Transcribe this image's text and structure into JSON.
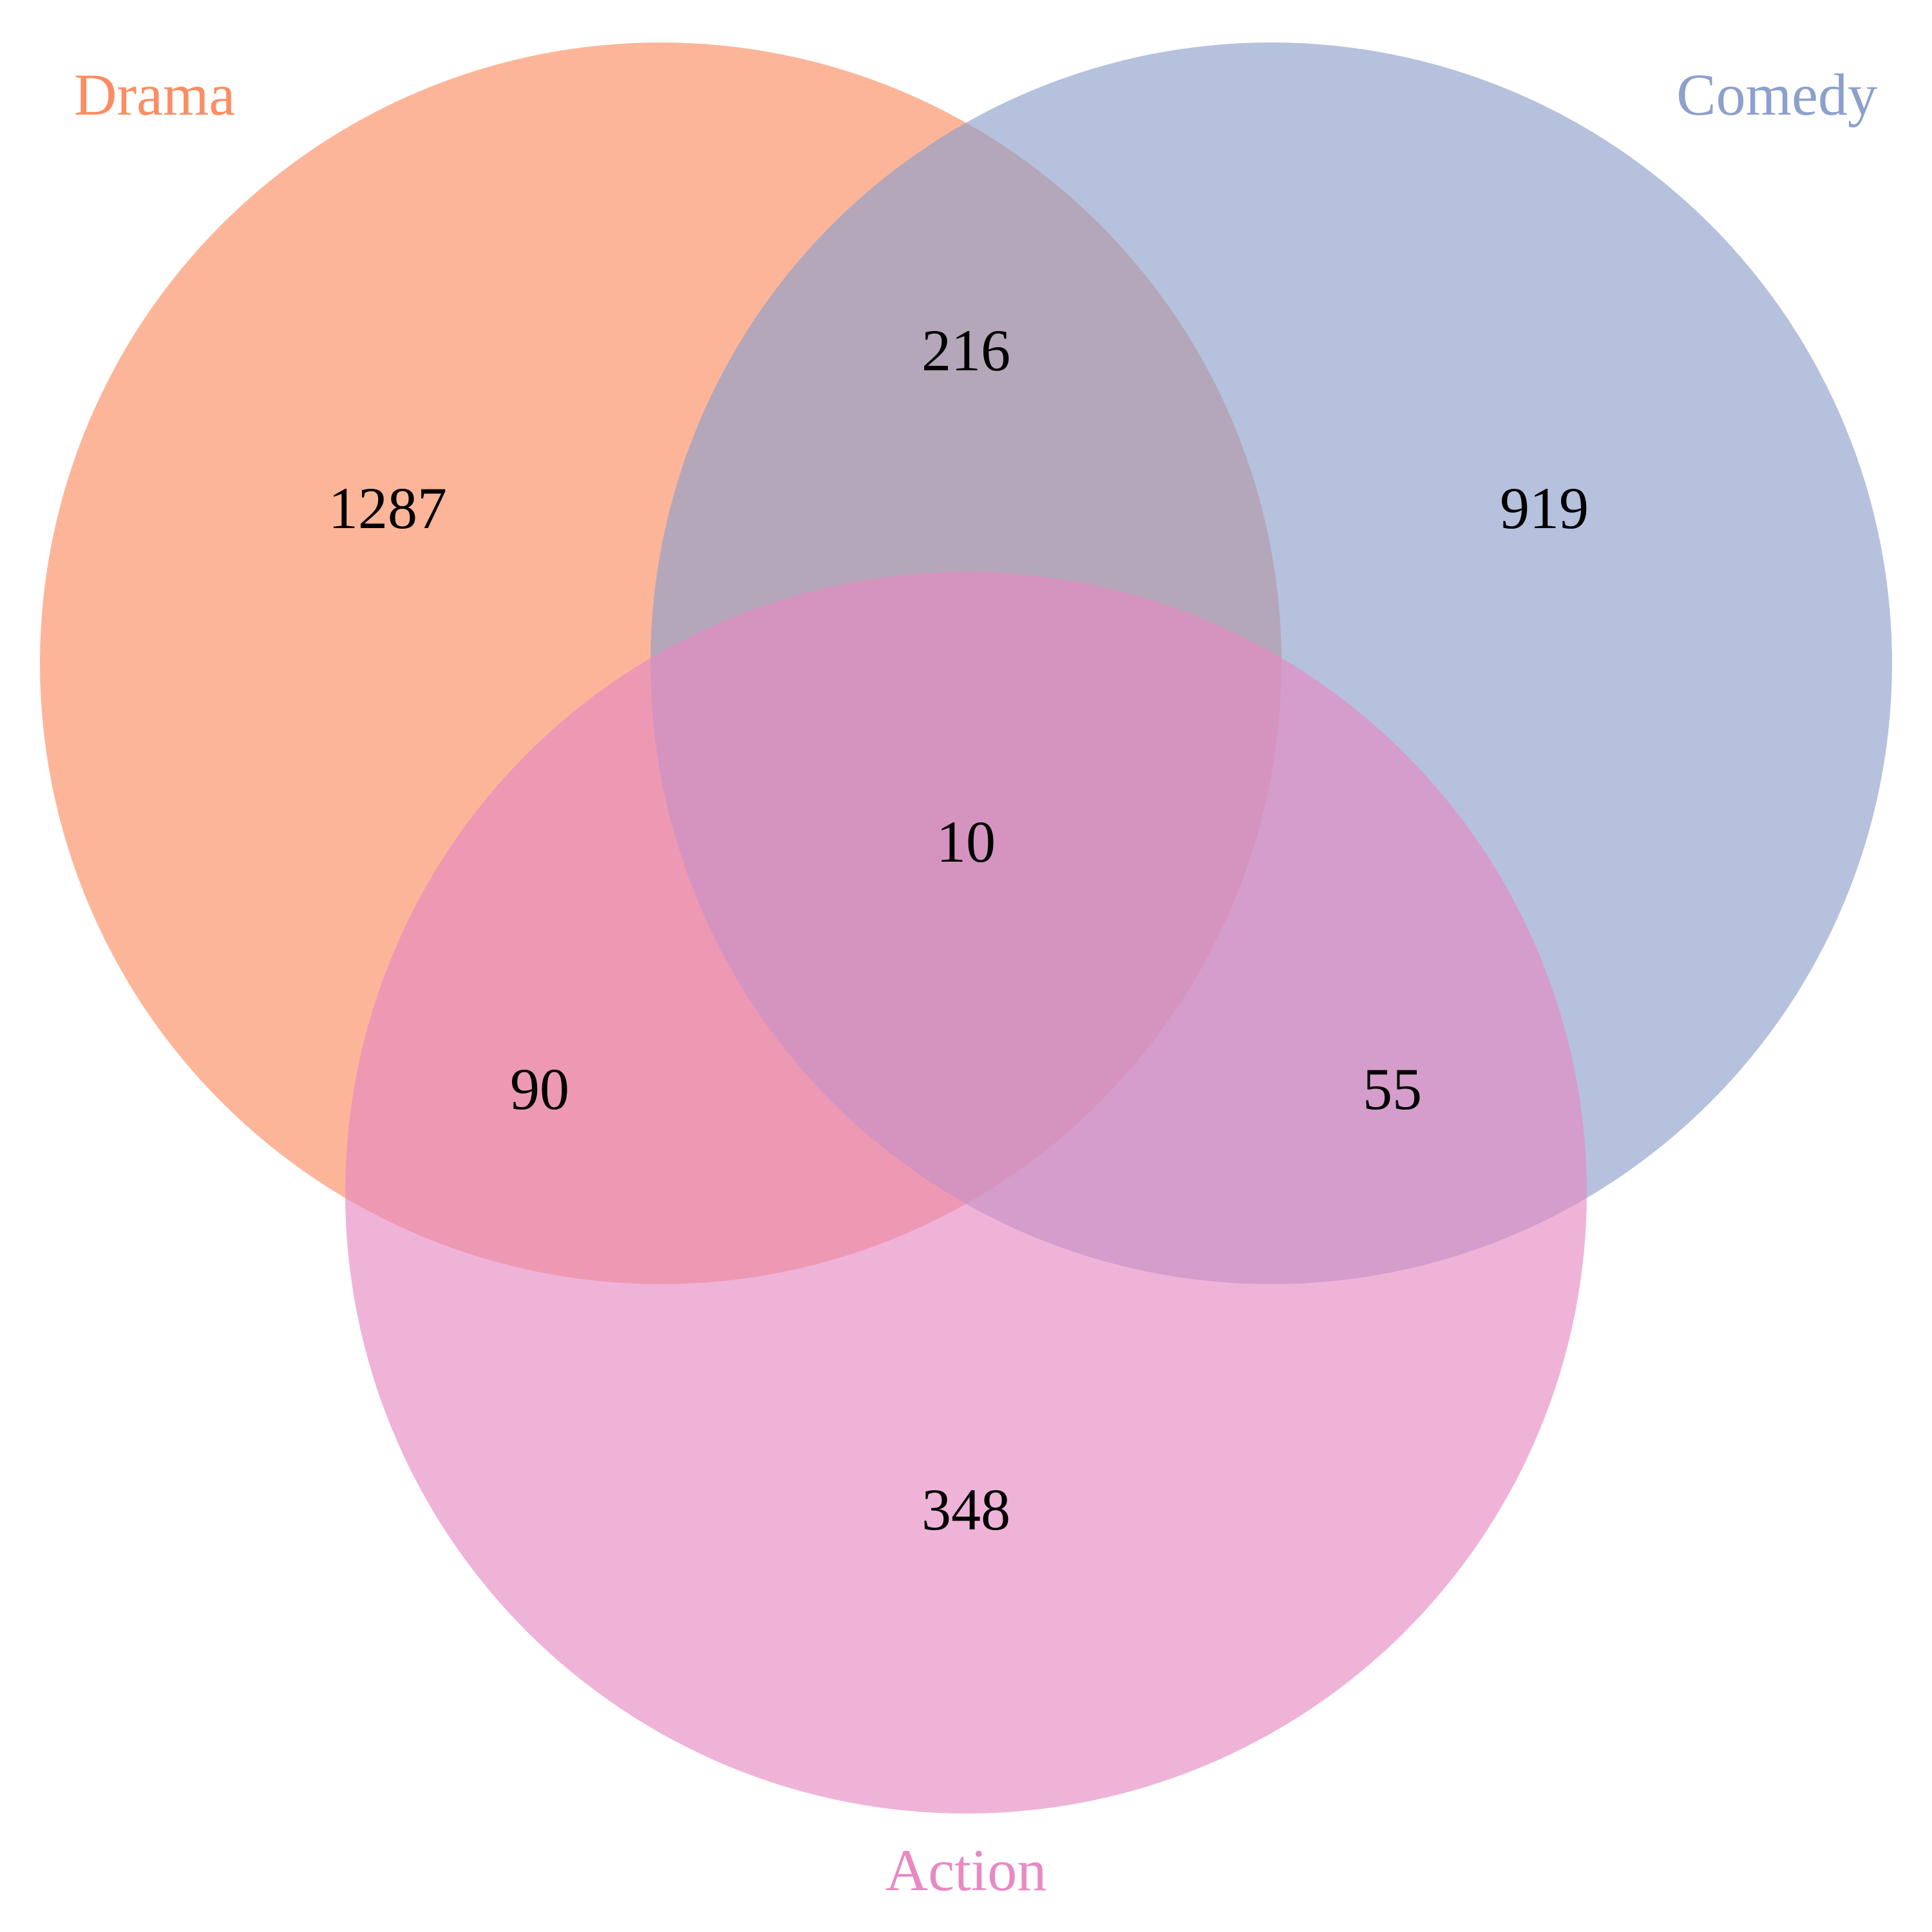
{
  "diagram": {
    "type": "venn-3",
    "sets": [
      {
        "id": "drama",
        "name": "Drama",
        "color": "#fc8d62"
      },
      {
        "id": "comedy",
        "name": "Comedy",
        "color": "#8da0cb"
      },
      {
        "id": "action",
        "name": "Action",
        "color": "#e78ac3"
      }
    ],
    "regions": {
      "drama_only": "1287",
      "comedy_only": "919",
      "action_only": "348",
      "drama_comedy": "216",
      "drama_action": "90",
      "comedy_action": "55",
      "all_three": "10"
    }
  }
}
